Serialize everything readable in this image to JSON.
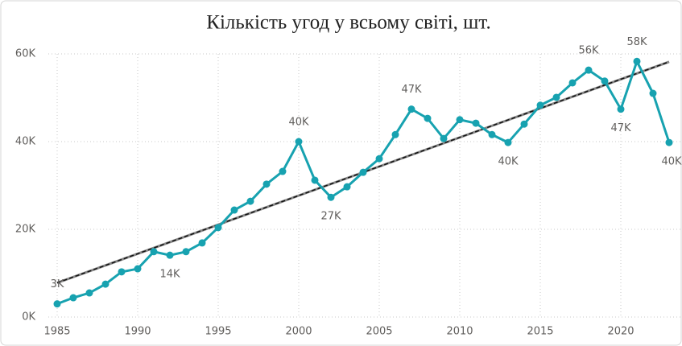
{
  "chart_data": {
    "type": "line",
    "title": "Кількість угод у всьому світі, шт.",
    "x": [
      1985,
      1986,
      1987,
      1988,
      1989,
      1990,
      1991,
      1992,
      1993,
      1994,
      1995,
      1996,
      1997,
      1998,
      1999,
      2000,
      2001,
      2002,
      2003,
      2004,
      2005,
      2006,
      2007,
      2008,
      2009,
      2010,
      2011,
      2012,
      2013,
      2014,
      2015,
      2016,
      2017,
      2018,
      2019,
      2020,
      2021,
      2022,
      2023
    ],
    "series": [
      {
        "name": "Кількість угод",
        "color": "#17a2b0",
        "values": [
          3000,
          4400,
          5500,
          7500,
          10300,
          11000,
          14900,
          14100,
          14900,
          16900,
          20400,
          24400,
          26400,
          30300,
          33200,
          40000,
          31200,
          27300,
          29700,
          33000,
          36100,
          41600,
          47400,
          45300,
          40700,
          45000,
          44200,
          41600,
          39800,
          44000,
          48300,
          50100,
          53400,
          56300,
          53800,
          47400,
          58300,
          51000,
          39800
        ],
        "value_labels": [
          "3K",
          null,
          null,
          null,
          null,
          null,
          null,
          "14K",
          null,
          null,
          null,
          null,
          null,
          null,
          null,
          "40K",
          null,
          "27K",
          null,
          null,
          null,
          null,
          "47K",
          null,
          null,
          null,
          null,
          null,
          "40K",
          null,
          null,
          null,
          null,
          "56K",
          null,
          "47K",
          "58K",
          null,
          "40K"
        ]
      }
    ],
    "trend": {
      "x": [
        1985,
        2023
      ],
      "values": [
        7800,
        58200
      ]
    },
    "xlim": [
      1985,
      2023
    ],
    "xticks": [
      1985,
      1990,
      1995,
      2000,
      2005,
      2010,
      2015,
      2020
    ],
    "ylim": [
      0,
      60000
    ],
    "yticks": [
      {
        "value": 0,
        "label": "0K"
      },
      {
        "value": 20000,
        "label": "20K"
      },
      {
        "value": 40000,
        "label": "40K"
      },
      {
        "value": 60000,
        "label": "60K"
      }
    ],
    "grid": true
  }
}
